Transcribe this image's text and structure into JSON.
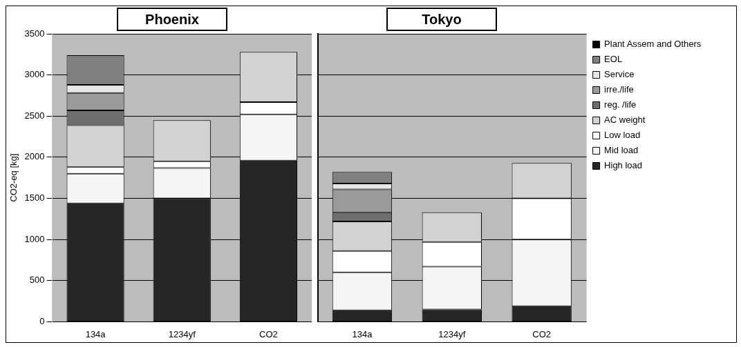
{
  "chart_data": [
    {
      "type": "bar",
      "stacked": true,
      "title": "Phoenix",
      "ylabel": "CO2-eq [kg]",
      "categories": [
        "134a",
        "1234yf",
        "CO2"
      ],
      "ylim": [
        0,
        3500
      ],
      "yticks": [
        0,
        500,
        1000,
        1500,
        2000,
        2500,
        3000,
        3500
      ],
      "grid": "y",
      "series": [
        {
          "color": "#262626",
          "values": [
            1440,
            1500,
            1960
          ]
        },
        {
          "color": "#f5f5f5",
          "values": [
            360,
            370,
            560
          ]
        },
        {
          "color": "#ffffff",
          "values": [
            80,
            80,
            150
          ]
        },
        {
          "color": "#d2d2d2",
          "values": [
            510,
            500,
            610
          ]
        },
        {
          "color": "#6e6e6e",
          "values": [
            180,
            0,
            0
          ]
        },
        {
          "color": "#9a9a9a",
          "values": [
            210,
            0,
            0
          ]
        },
        {
          "color": "#e6e6e6",
          "values": [
            100,
            0,
            0
          ]
        },
        {
          "color": "#808080",
          "values": [
            360,
            0,
            0
          ]
        },
        {
          "color": "#000000",
          "values": [
            0,
            0,
            0
          ]
        }
      ]
    },
    {
      "type": "bar",
      "stacked": true,
      "title": "Tokyo",
      "categories": [
        "134a",
        "1234yf",
        "CO2"
      ],
      "ylim": [
        0,
        3500
      ],
      "yticks": [
        0,
        500,
        1000,
        1500,
        2000,
        2500,
        3000,
        3500
      ],
      "grid": "y",
      "tick_labels": "x",
      "legend": "right",
      "series": [
        {
          "name": "High load",
          "color": "#262626",
          "values": [
            140,
            150,
            190
          ]
        },
        {
          "name": "Mid load",
          "color": "#f5f5f5",
          "values": [
            460,
            520,
            810
          ]
        },
        {
          "name": "Low load",
          "color": "#ffffff",
          "values": [
            260,
            300,
            500
          ]
        },
        {
          "name": "AC weight",
          "color": "#d2d2d2",
          "values": [
            360,
            360,
            430
          ]
        },
        {
          "name": "reg. /life",
          "color": "#6e6e6e",
          "values": [
            110,
            0,
            0
          ]
        },
        {
          "name": "irre./life",
          "color": "#9a9a9a",
          "values": [
            280,
            0,
            0
          ]
        },
        {
          "name": "Service",
          "color": "#e6e6e6",
          "values": [
            70,
            0,
            0
          ]
        },
        {
          "name": "EOL",
          "color": "#808080",
          "values": [
            140,
            0,
            0
          ]
        },
        {
          "name": "Plant Assem and Others",
          "color": "#000000",
          "values": [
            0,
            0,
            0
          ]
        }
      ]
    }
  ]
}
